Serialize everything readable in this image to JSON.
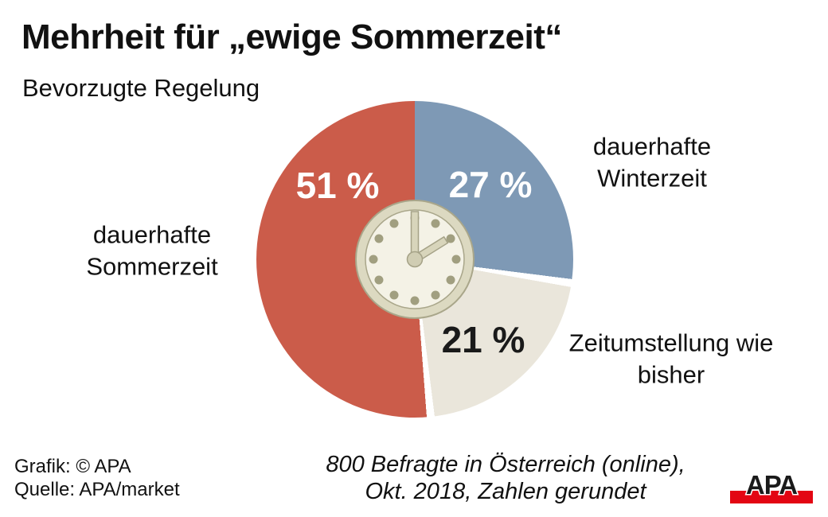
{
  "title": "Mehrheit für „ewige Sommerzeit“",
  "subtitle": "Bevorzugte Regelung",
  "chart_data": {
    "type": "pie",
    "title": "Mehrheit für „ewige Sommerzeit“",
    "subtitle": "Bevorzugte Regelung",
    "unit": "%",
    "start_angle_deg": 0,
    "direction": "clockwise",
    "slices": [
      {
        "label": "dauerhafte Sommerzeit",
        "value": 51,
        "value_label": "51 %",
        "color": "#cb5c4a",
        "text_color": "#ffffff"
      },
      {
        "label": "dauerhafte Winterzeit",
        "value": 27,
        "value_label": "27 %",
        "color": "#7e99b5",
        "text_color": "#ffffff"
      },
      {
        "label": "Zeitumstellung wie bisher",
        "value": 21,
        "value_label": "21 %",
        "color": "#eae6db",
        "text_color": "#1a1a1a"
      }
    ],
    "draw_order_from_top": [
      1,
      2,
      0
    ],
    "separator_color": "#ffffff",
    "center_icon": "clock-icon-2-oclock"
  },
  "footer": {
    "credit_line1": "Grafik: © APA",
    "credit_line2": "Quelle: APA/market",
    "survey_line1": "800 Befragte in Österreich (online),",
    "survey_line2": "Okt. 2018, Zahlen gerundet",
    "logo_text": "APA",
    "logo_text_color": "#1a1a1a",
    "logo_bar_color": "#e30613"
  }
}
